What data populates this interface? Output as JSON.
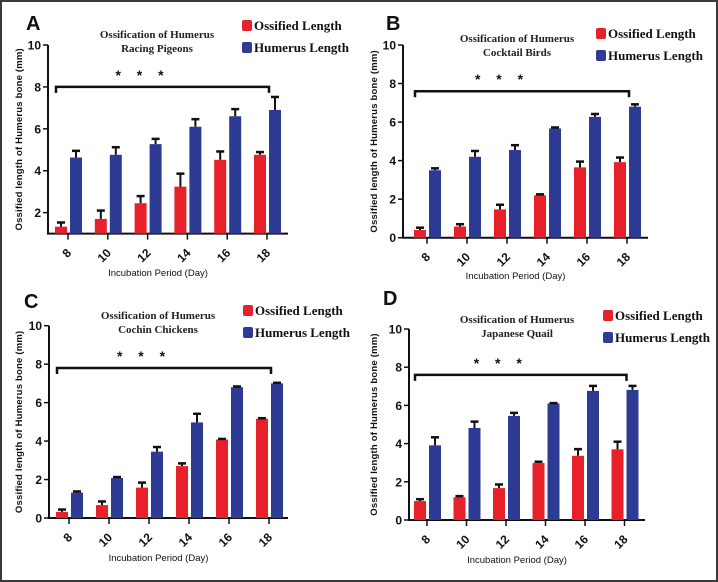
{
  "chart_data": [
    {
      "panel": "A",
      "type": "bar",
      "title": "Ossification of Humerus",
      "subtitle": "Racing Pigeons",
      "xlabel": "Incubation Period (Day)",
      "ylabel": "Ossified length of Humerus bone (mm)",
      "ylim": [
        1,
        10
      ],
      "yticks": [
        2,
        4,
        6,
        8,
        10
      ],
      "categories": [
        "8",
        "10",
        "12",
        "14",
        "16",
        "18"
      ],
      "legend_position": "top-right",
      "significance": "* * *",
      "significance_level": 8,
      "series": [
        {
          "name": "Ossified Length",
          "color": "#e8202a",
          "values": [
            1.33,
            1.7,
            2.45,
            3.24,
            4.52,
            4.76
          ],
          "errors": [
            0.2,
            0.4,
            0.34,
            0.62,
            0.4,
            0.13
          ]
        },
        {
          "name": "Humerus Length",
          "color": "#2e3b94",
          "values": [
            4.63,
            4.76,
            5.27,
            6.1,
            6.6,
            6.9
          ],
          "errors": [
            0.32,
            0.36,
            0.25,
            0.36,
            0.34,
            0.62
          ]
        }
      ]
    },
    {
      "panel": "B",
      "type": "bar",
      "title": "Ossification of Humerus",
      "subtitle": "Cocktail Birds",
      "xlabel": "Incubation Period (Day)",
      "ylabel": "Ossified length of Humerus bone (mm)",
      "ylim": [
        0,
        10
      ],
      "yticks": [
        0,
        2,
        4,
        6,
        8,
        10
      ],
      "categories": [
        "8",
        "10",
        "12",
        "14",
        "16",
        "18"
      ],
      "legend_position": "top-right",
      "significance": "* * *",
      "significance_level": 7.6,
      "series": [
        {
          "name": "Ossified Length",
          "color": "#e8202a",
          "values": [
            0.4,
            0.58,
            1.47,
            2.2,
            3.65,
            3.92
          ],
          "errors": [
            0.12,
            0.12,
            0.24,
            0.05,
            0.3,
            0.24
          ]
        },
        {
          "name": "Humerus Length",
          "color": "#2e3b94",
          "values": [
            3.5,
            4.2,
            4.55,
            5.67,
            6.27,
            6.8
          ],
          "errors": [
            0.1,
            0.3,
            0.25,
            0.05,
            0.15,
            0.12
          ]
        }
      ]
    },
    {
      "panel": "C",
      "type": "bar",
      "title": "Ossification of Humerus",
      "subtitle": "Cochin Chickens",
      "xlabel": "Incubation Period (Day)",
      "ylabel": "Ossified length of Humerus bone (mm)",
      "ylim": [
        0,
        10
      ],
      "yticks": [
        0,
        2,
        4,
        6,
        8,
        10
      ],
      "categories": [
        "8",
        "10",
        "12",
        "14",
        "16",
        "18"
      ],
      "legend_position": "top-right",
      "significance": "* * *",
      "significance_level": 7.8,
      "series": [
        {
          "name": "Ossified Length",
          "color": "#e8202a",
          "values": [
            0.32,
            0.67,
            1.58,
            2.7,
            4.08,
            5.16
          ],
          "errors": [
            0.12,
            0.19,
            0.26,
            0.14,
            0.03,
            0.03
          ]
        },
        {
          "name": "Humerus Length",
          "color": "#2e3b94",
          "values": [
            1.32,
            2.08,
            3.45,
            4.97,
            6.8,
            7.0
          ],
          "errors": [
            0.06,
            0.05,
            0.24,
            0.45,
            0.04,
            0.03
          ]
        }
      ]
    },
    {
      "panel": "D",
      "type": "bar",
      "title": "Ossification of Humerus",
      "subtitle": "Japanese Quail",
      "xlabel": "Incubation Period (Day)",
      "ylabel": "Ossified length of Humerus bone (mm)",
      "ylim": [
        0,
        10
      ],
      "yticks": [
        0,
        2,
        4,
        6,
        8,
        10
      ],
      "categories": [
        "8",
        "10",
        "12",
        "14",
        "16",
        "18"
      ],
      "legend_position": "top-right",
      "significance": "* * *",
      "significance_level": 7.6,
      "series": [
        {
          "name": "Ossified Length",
          "color": "#e8202a",
          "values": [
            0.99,
            1.19,
            1.67,
            2.98,
            3.36,
            3.7
          ],
          "errors": [
            0.1,
            0.06,
            0.19,
            0.07,
            0.35,
            0.4
          ]
        },
        {
          "name": "Humerus Length",
          "color": "#2e3b94",
          "values": [
            3.91,
            4.82,
            5.45,
            6.1,
            6.76,
            6.81
          ],
          "errors": [
            0.42,
            0.33,
            0.16,
            0.02,
            0.26,
            0.21
          ]
        }
      ]
    }
  ]
}
